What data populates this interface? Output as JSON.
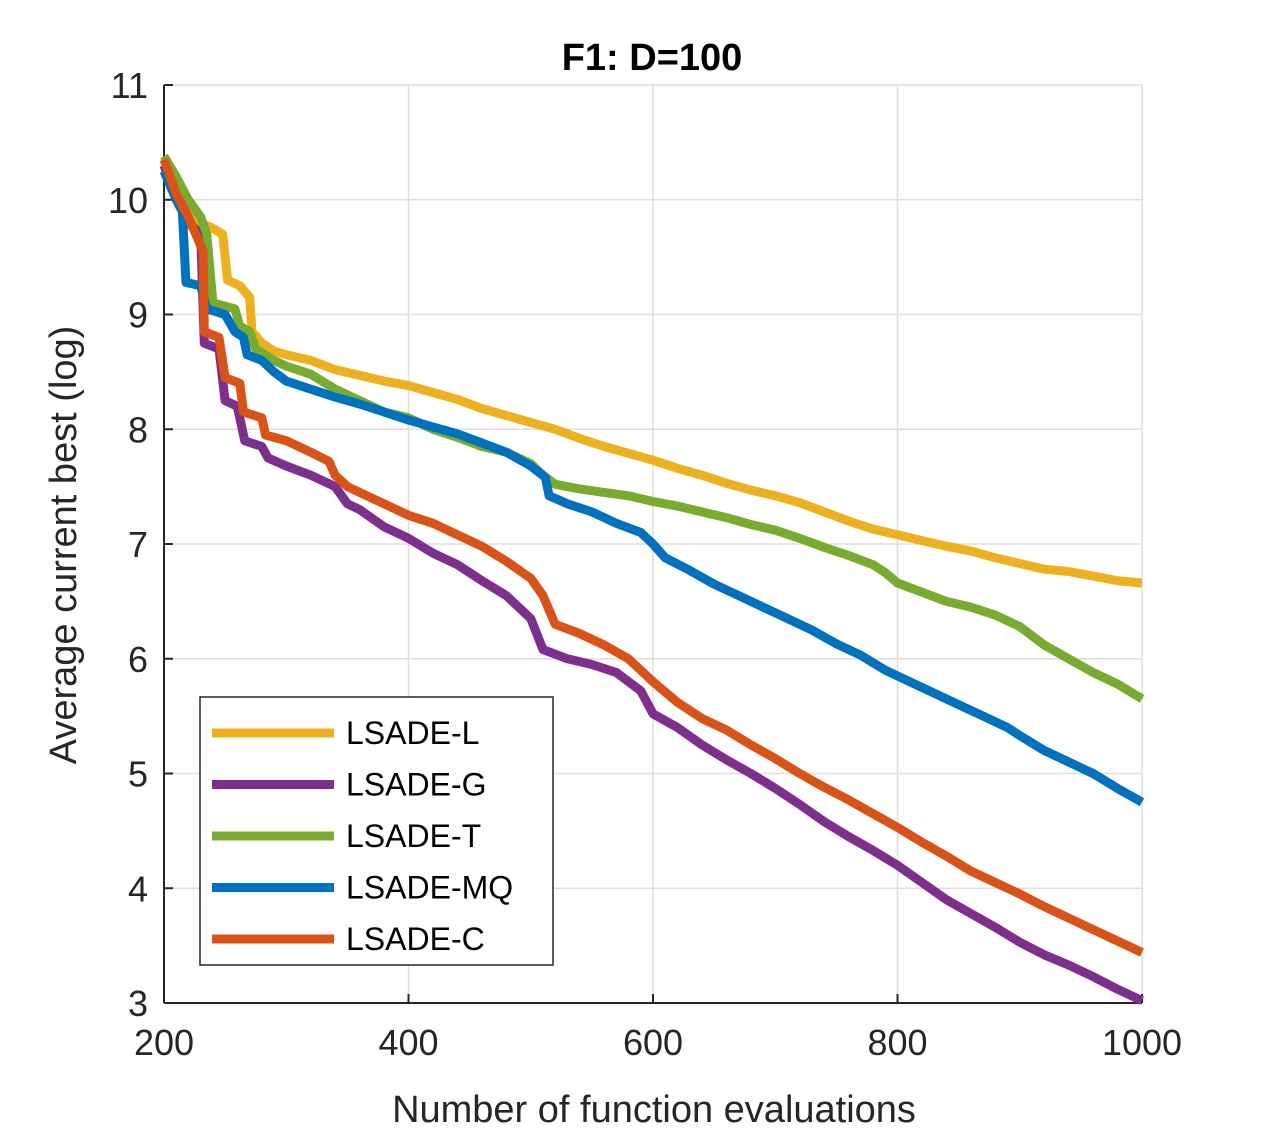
{
  "chart_data": {
    "type": "line",
    "title": "F1: D=100",
    "xlabel": "Number of function evaluations",
    "ylabel": "Average current best (log)",
    "xlim": [
      200,
      1000
    ],
    "ylim": [
      3,
      11
    ],
    "xticks": [
      200,
      400,
      600,
      800,
      1000
    ],
    "yticks": [
      3,
      4,
      5,
      6,
      7,
      8,
      9,
      10,
      11
    ],
    "grid": true,
    "legend_position": "bottom-left",
    "series": [
      {
        "name": "LSADE-L",
        "color": "#EDB120",
        "points": [
          [
            200,
            10.35
          ],
          [
            210,
            10.15
          ],
          [
            220,
            9.95
          ],
          [
            230,
            9.8
          ],
          [
            240,
            9.75
          ],
          [
            248,
            9.7
          ],
          [
            252,
            9.3
          ],
          [
            262,
            9.25
          ],
          [
            270,
            9.15
          ],
          [
            272,
            8.85
          ],
          [
            280,
            8.75
          ],
          [
            290,
            8.68
          ],
          [
            300,
            8.65
          ],
          [
            320,
            8.6
          ],
          [
            340,
            8.52
          ],
          [
            360,
            8.47
          ],
          [
            380,
            8.42
          ],
          [
            400,
            8.38
          ],
          [
            420,
            8.32
          ],
          [
            440,
            8.26
          ],
          [
            460,
            8.18
          ],
          [
            480,
            8.12
          ],
          [
            500,
            8.06
          ],
          [
            520,
            8.0
          ],
          [
            540,
            7.92
          ],
          [
            560,
            7.85
          ],
          [
            580,
            7.79
          ],
          [
            600,
            7.73
          ],
          [
            620,
            7.66
          ],
          [
            640,
            7.6
          ],
          [
            660,
            7.53
          ],
          [
            680,
            7.47
          ],
          [
            700,
            7.42
          ],
          [
            720,
            7.36
          ],
          [
            740,
            7.28
          ],
          [
            760,
            7.2
          ],
          [
            780,
            7.13
          ],
          [
            800,
            7.08
          ],
          [
            820,
            7.03
          ],
          [
            840,
            6.98
          ],
          [
            860,
            6.94
          ],
          [
            880,
            6.88
          ],
          [
            900,
            6.83
          ],
          [
            920,
            6.78
          ],
          [
            940,
            6.76
          ],
          [
            960,
            6.72
          ],
          [
            980,
            6.68
          ],
          [
            1000,
            6.66
          ]
        ]
      },
      {
        "name": "LSADE-G",
        "color": "#7E2F8E",
        "points": [
          [
            200,
            10.3
          ],
          [
            210,
            10.0
          ],
          [
            220,
            9.8
          ],
          [
            230,
            9.7
          ],
          [
            233,
            8.75
          ],
          [
            245,
            8.7
          ],
          [
            250,
            8.25
          ],
          [
            260,
            8.2
          ],
          [
            266,
            7.9
          ],
          [
            280,
            7.85
          ],
          [
            285,
            7.75
          ],
          [
            300,
            7.68
          ],
          [
            320,
            7.6
          ],
          [
            340,
            7.5
          ],
          [
            350,
            7.35
          ],
          [
            360,
            7.3
          ],
          [
            380,
            7.15
          ],
          [
            400,
            7.05
          ],
          [
            420,
            6.92
          ],
          [
            440,
            6.82
          ],
          [
            460,
            6.68
          ],
          [
            480,
            6.55
          ],
          [
            500,
            6.35
          ],
          [
            510,
            6.08
          ],
          [
            530,
            6.0
          ],
          [
            550,
            5.95
          ],
          [
            570,
            5.88
          ],
          [
            590,
            5.72
          ],
          [
            600,
            5.52
          ],
          [
            620,
            5.4
          ],
          [
            640,
            5.25
          ],
          [
            660,
            5.12
          ],
          [
            680,
            5.0
          ],
          [
            700,
            4.87
          ],
          [
            720,
            4.73
          ],
          [
            740,
            4.58
          ],
          [
            760,
            4.45
          ],
          [
            780,
            4.33
          ],
          [
            800,
            4.2
          ],
          [
            820,
            4.05
          ],
          [
            840,
            3.9
          ],
          [
            860,
            3.78
          ],
          [
            880,
            3.66
          ],
          [
            900,
            3.53
          ],
          [
            920,
            3.42
          ],
          [
            940,
            3.33
          ],
          [
            960,
            3.23
          ],
          [
            980,
            3.12
          ],
          [
            1000,
            3.02
          ]
        ]
      },
      {
        "name": "LSADE-T",
        "color": "#77AC30",
        "points": [
          [
            200,
            10.38
          ],
          [
            210,
            10.2
          ],
          [
            220,
            10.0
          ],
          [
            230,
            9.85
          ],
          [
            235,
            9.7
          ],
          [
            240,
            9.1
          ],
          [
            258,
            9.05
          ],
          [
            262,
            8.9
          ],
          [
            270,
            8.85
          ],
          [
            275,
            8.7
          ],
          [
            290,
            8.6
          ],
          [
            300,
            8.55
          ],
          [
            320,
            8.48
          ],
          [
            340,
            8.35
          ],
          [
            360,
            8.25
          ],
          [
            380,
            8.15
          ],
          [
            400,
            8.1
          ],
          [
            420,
            8.0
          ],
          [
            440,
            7.93
          ],
          [
            460,
            7.85
          ],
          [
            480,
            7.8
          ],
          [
            500,
            7.7
          ],
          [
            510,
            7.6
          ],
          [
            520,
            7.52
          ],
          [
            540,
            7.48
          ],
          [
            560,
            7.45
          ],
          [
            580,
            7.42
          ],
          [
            600,
            7.37
          ],
          [
            620,
            7.33
          ],
          [
            640,
            7.28
          ],
          [
            660,
            7.23
          ],
          [
            680,
            7.17
          ],
          [
            700,
            7.12
          ],
          [
            720,
            7.05
          ],
          [
            740,
            6.97
          ],
          [
            760,
            6.9
          ],
          [
            780,
            6.82
          ],
          [
            790,
            6.75
          ],
          [
            800,
            6.66
          ],
          [
            820,
            6.58
          ],
          [
            840,
            6.5
          ],
          [
            860,
            6.45
          ],
          [
            880,
            6.38
          ],
          [
            900,
            6.28
          ],
          [
            920,
            6.12
          ],
          [
            940,
            6.0
          ],
          [
            960,
            5.88
          ],
          [
            980,
            5.78
          ],
          [
            1000,
            5.65
          ]
        ]
      },
      {
        "name": "LSADE-MQ",
        "color": "#0072BD",
        "points": [
          [
            200,
            10.25
          ],
          [
            210,
            10.0
          ],
          [
            215,
            9.9
          ],
          [
            218,
            9.28
          ],
          [
            230,
            9.25
          ],
          [
            235,
            9.05
          ],
          [
            250,
            9.0
          ],
          [
            258,
            8.85
          ],
          [
            265,
            8.8
          ],
          [
            268,
            8.65
          ],
          [
            280,
            8.6
          ],
          [
            290,
            8.5
          ],
          [
            300,
            8.42
          ],
          [
            320,
            8.35
          ],
          [
            340,
            8.28
          ],
          [
            360,
            8.22
          ],
          [
            380,
            8.15
          ],
          [
            400,
            8.08
          ],
          [
            420,
            8.02
          ],
          [
            440,
            7.96
          ],
          [
            460,
            7.88
          ],
          [
            480,
            7.8
          ],
          [
            500,
            7.68
          ],
          [
            512,
            7.58
          ],
          [
            515,
            7.42
          ],
          [
            530,
            7.35
          ],
          [
            550,
            7.28
          ],
          [
            570,
            7.18
          ],
          [
            590,
            7.1
          ],
          [
            600,
            7.0
          ],
          [
            610,
            6.88
          ],
          [
            630,
            6.77
          ],
          [
            650,
            6.65
          ],
          [
            670,
            6.55
          ],
          [
            690,
            6.45
          ],
          [
            710,
            6.35
          ],
          [
            730,
            6.25
          ],
          [
            750,
            6.13
          ],
          [
            770,
            6.03
          ],
          [
            790,
            5.9
          ],
          [
            810,
            5.8
          ],
          [
            830,
            5.7
          ],
          [
            850,
            5.6
          ],
          [
            870,
            5.5
          ],
          [
            890,
            5.4
          ],
          [
            900,
            5.33
          ],
          [
            920,
            5.2
          ],
          [
            940,
            5.1
          ],
          [
            960,
            5.0
          ],
          [
            980,
            4.87
          ],
          [
            1000,
            4.75
          ]
        ]
      },
      {
        "name": "LSADE-C",
        "color": "#D95319",
        "points": [
          [
            200,
            10.35
          ],
          [
            210,
            10.05
          ],
          [
            220,
            9.85
          ],
          [
            232,
            9.55
          ],
          [
            233,
            8.85
          ],
          [
            245,
            8.8
          ],
          [
            250,
            8.45
          ],
          [
            262,
            8.4
          ],
          [
            265,
            8.15
          ],
          [
            280,
            8.1
          ],
          [
            283,
            7.95
          ],
          [
            300,
            7.9
          ],
          [
            320,
            7.8
          ],
          [
            335,
            7.72
          ],
          [
            340,
            7.6
          ],
          [
            350,
            7.5
          ],
          [
            360,
            7.45
          ],
          [
            380,
            7.35
          ],
          [
            400,
            7.25
          ],
          [
            420,
            7.18
          ],
          [
            440,
            7.08
          ],
          [
            460,
            6.98
          ],
          [
            480,
            6.85
          ],
          [
            500,
            6.7
          ],
          [
            510,
            6.55
          ],
          [
            520,
            6.3
          ],
          [
            540,
            6.22
          ],
          [
            560,
            6.12
          ],
          [
            580,
            6.0
          ],
          [
            600,
            5.8
          ],
          [
            620,
            5.62
          ],
          [
            640,
            5.48
          ],
          [
            660,
            5.38
          ],
          [
            680,
            5.25
          ],
          [
            700,
            5.13
          ],
          [
            720,
            5.0
          ],
          [
            740,
            4.88
          ],
          [
            760,
            4.77
          ],
          [
            780,
            4.65
          ],
          [
            800,
            4.53
          ],
          [
            820,
            4.4
          ],
          [
            840,
            4.28
          ],
          [
            860,
            4.15
          ],
          [
            880,
            4.05
          ],
          [
            900,
            3.95
          ],
          [
            920,
            3.84
          ],
          [
            940,
            3.74
          ],
          [
            960,
            3.64
          ],
          [
            980,
            3.54
          ],
          [
            1000,
            3.44
          ]
        ]
      }
    ]
  }
}
